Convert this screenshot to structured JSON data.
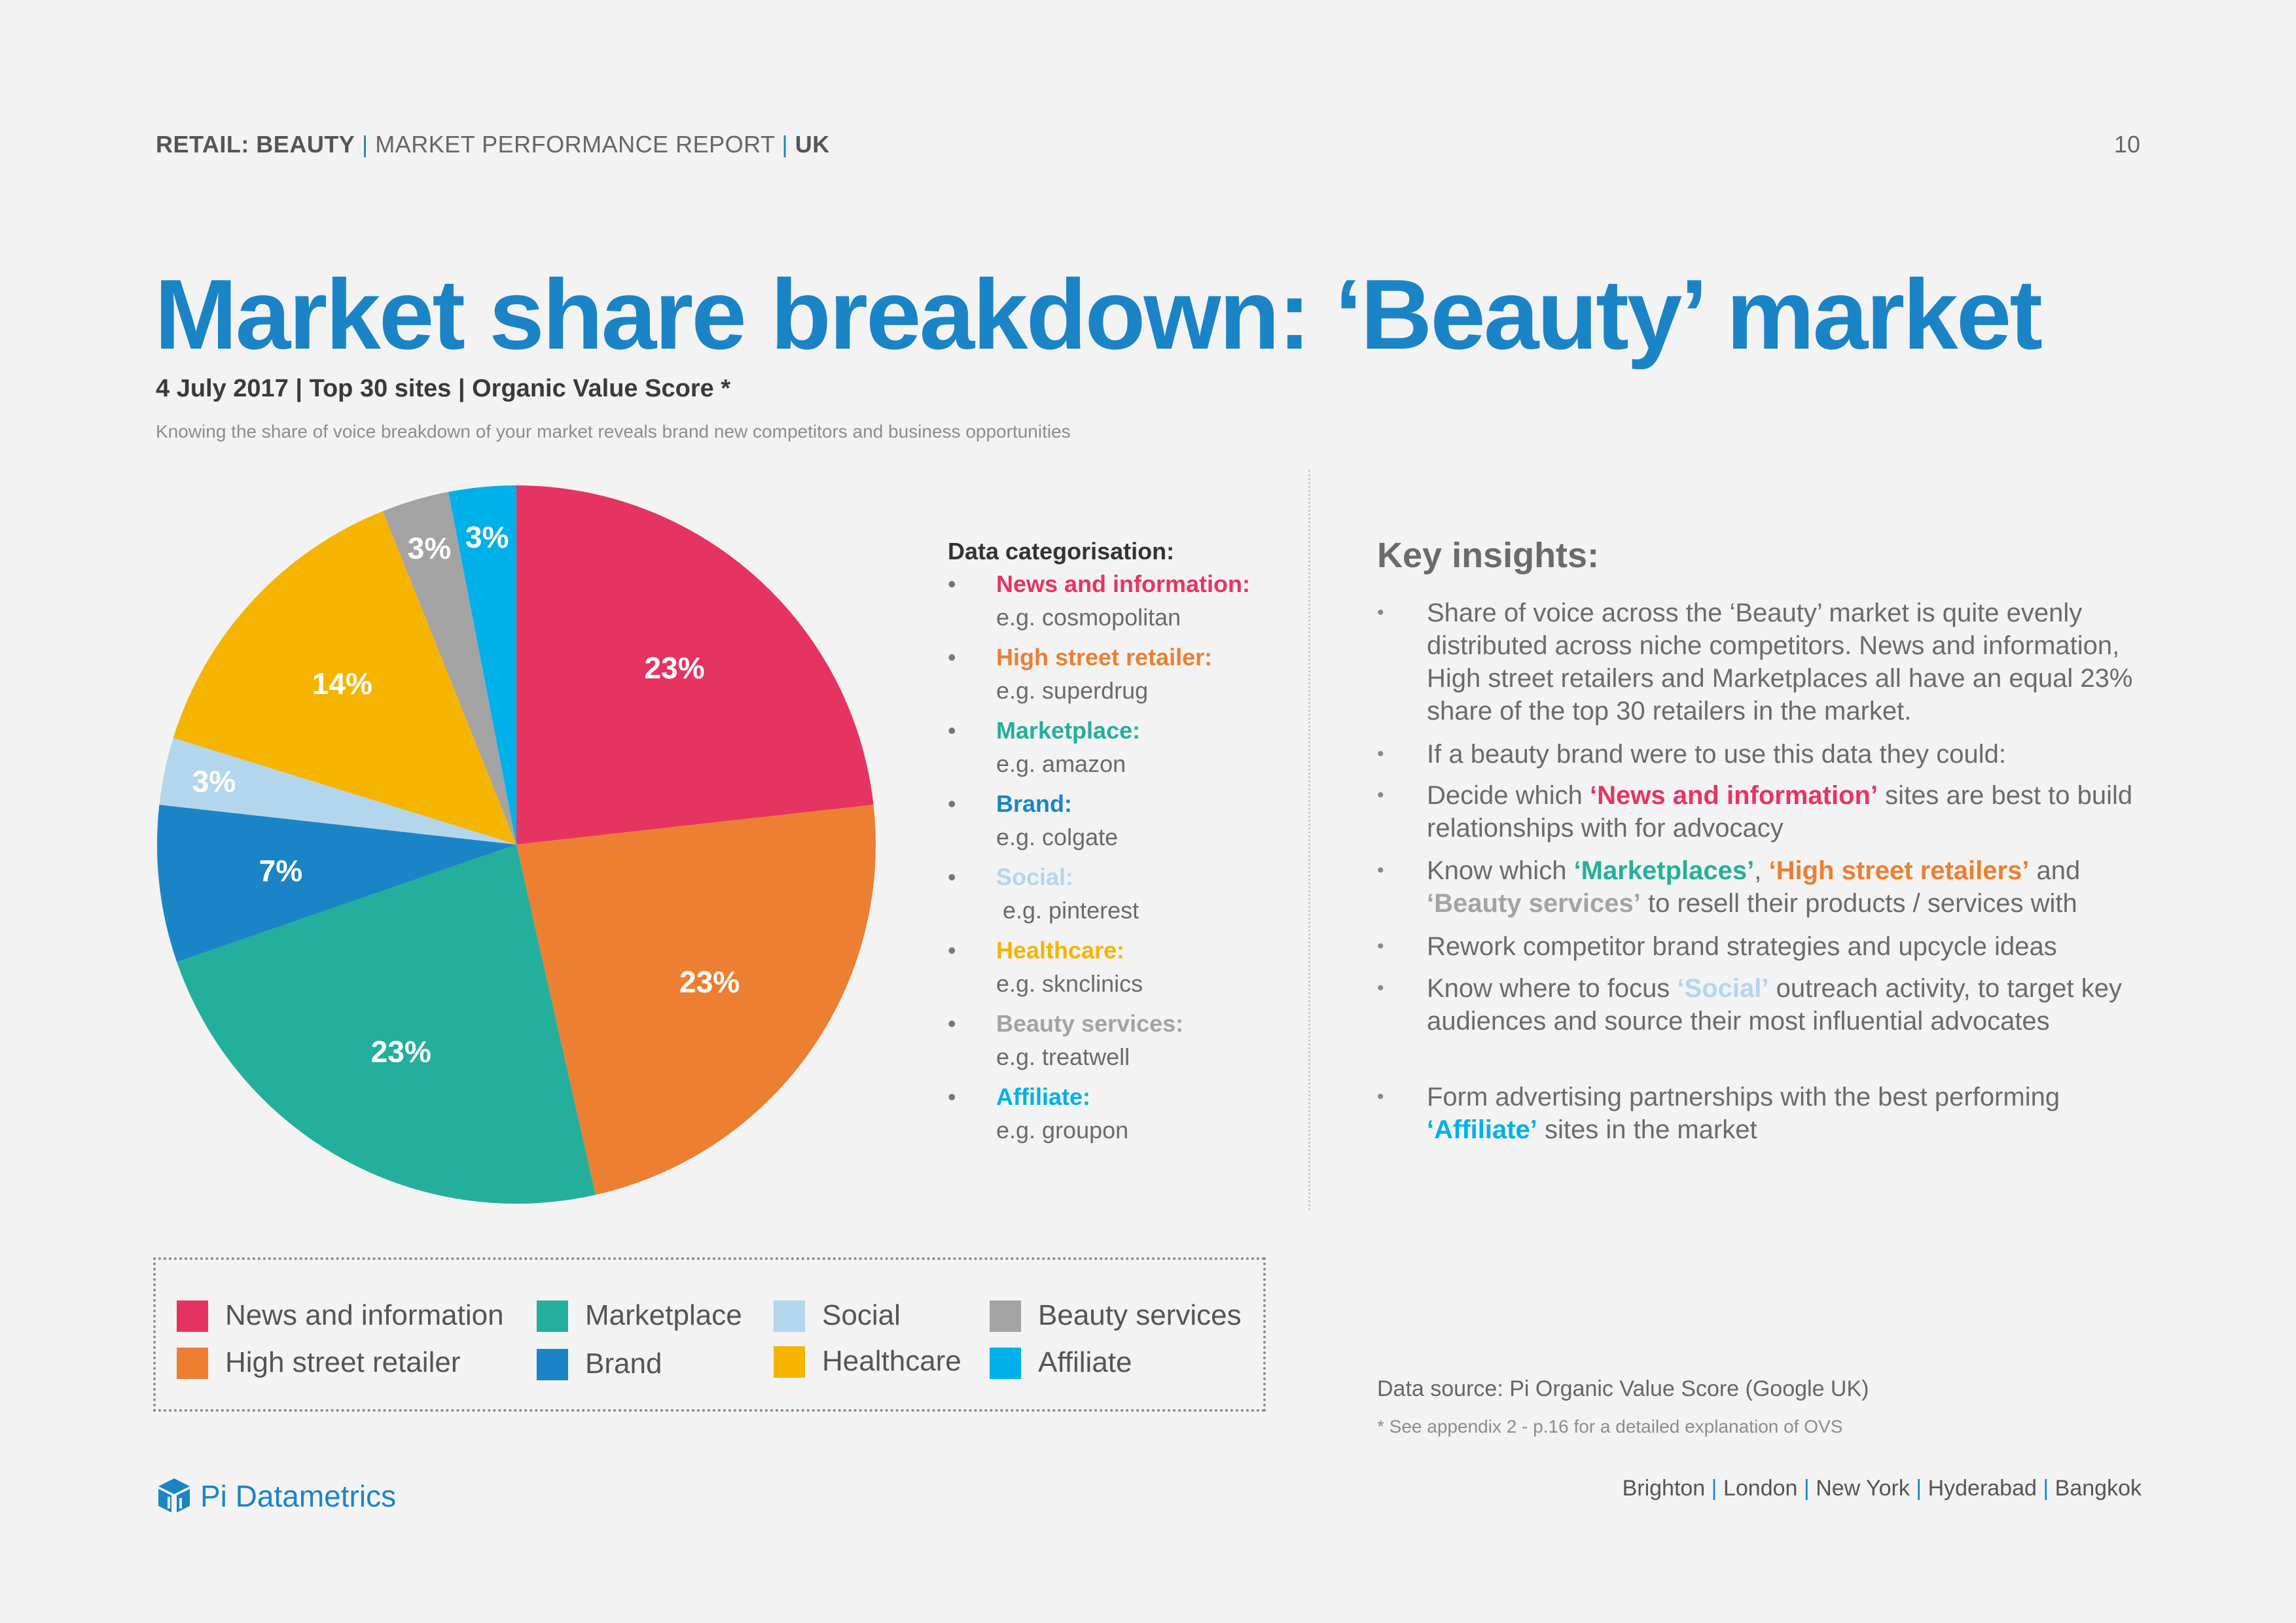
{
  "header": {
    "part1": "RETAIL: BEAUTY",
    "sep": "|",
    "part2": "MARKET PERFORMANCE REPORT",
    "part3": "UK",
    "page": "10"
  },
  "title": "Market share breakdown: ‘Beauty’ market",
  "subtitle": "4 July 2017 | Top 30 sites | Organic Value Score *",
  "intro": "Knowing the share of voice breakdown of your market reveals brand new competitors and business opportunities",
  "chart_data": {
    "type": "pie",
    "categories": [
      "News and information",
      "High street retailer",
      "Marketplace",
      "Brand",
      "Social",
      "Healthcare",
      "Beauty services",
      "Affiliate"
    ],
    "values": [
      23,
      23,
      23,
      7,
      3,
      14,
      3,
      3
    ],
    "labels": [
      "23%",
      "23%",
      "23%",
      "7%",
      "3%",
      "14%",
      "3%",
      "3%"
    ],
    "colors": [
      "#e63462",
      "#ec7f31",
      "#24af9c",
      "#1b84c6",
      "#b3d6ec",
      "#f4b400",
      "#a3a3a3",
      "#00b0e9"
    ],
    "start_angle_deg": 0,
    "direction": "clockwise"
  },
  "categorisation": {
    "title": "Data categorisation:",
    "bullet": "•",
    "items": [
      {
        "name": "News and information:",
        "example": "e.g. cosmopolitan",
        "color": "#e63462"
      },
      {
        "name": "High street retailer:",
        "example": "e.g. superdrug",
        "color": "#ec7f31"
      },
      {
        "name": "Marketplace:",
        "example": "e.g. amazon",
        "color": "#24af9c"
      },
      {
        "name": "Brand:",
        "example": "e.g. colgate",
        "color": "#1b84c6"
      },
      {
        "name": "Social:",
        "example": "e.g. pinterest",
        "color": "#b3d6ec"
      },
      {
        "name": "Healthcare:",
        "example": "e.g. sknclinics",
        "color": "#f4b400"
      },
      {
        "name": "Beauty services:",
        "example": "e.g. treatwell",
        "color": "#a3a3a3"
      },
      {
        "name": "Affiliate:",
        "example": "e.g. groupon",
        "color": "#00b0e9"
      }
    ]
  },
  "insights": {
    "title": "Key insights:",
    "i1": "Share of voice across the ‘Beauty’ market is quite evenly distributed across niche competitors. News and information, High street retailers and Marketplaces all have an equal 23% share of the top 30 retailers in the market.",
    "i2": "If a beauty brand were to use this data they could:",
    "i3": {
      "a": "Decide which ",
      "h1": "‘News and information’",
      "b": " sites are best to build relationships with for advocacy"
    },
    "i4": {
      "a": "Know which ",
      "h1": "‘Marketplaces’",
      "b": ", ",
      "h2": "‘High street retailers’",
      "c": " and ",
      "h3": "‘Beauty services’",
      "d": " to resell their products / services with"
    },
    "i5": "Rework competitor brand strategies and upcycle ideas",
    "i6": {
      "a": "Know where to focus ",
      "h1": "‘Social’",
      "b": " outreach activity, to target key audiences and source their most influential advocates"
    },
    "i7": {
      "a": "Form advertising partnerships with the best performing ",
      "h1": "‘Affiliate’",
      "b": " sites in the market"
    }
  },
  "legend": [
    {
      "label": "News and information",
      "color": "#e63462"
    },
    {
      "label": "High street retailer",
      "color": "#ec7f31"
    },
    {
      "label": "Marketplace",
      "color": "#24af9c"
    },
    {
      "label": "Brand",
      "color": "#1b84c6"
    },
    {
      "label": "Social",
      "color": "#b3d6ec"
    },
    {
      "label": "Healthcare",
      "color": "#f4b400"
    },
    {
      "label": "Beauty services",
      "color": "#a3a3a3"
    },
    {
      "label": "Affiliate",
      "color": "#00b0e9"
    }
  ],
  "source": "Data source: Pi Organic Value Score (Google UK)",
  "footnote": "* See appendix 2 - p.16 for a detailed explanation of OVS",
  "brand": {
    "name": "Pi Datametrics",
    "color": "#1b84c6"
  },
  "cities": [
    "Brighton",
    "London",
    "New York",
    "Hyderabad",
    "Bangkok"
  ]
}
